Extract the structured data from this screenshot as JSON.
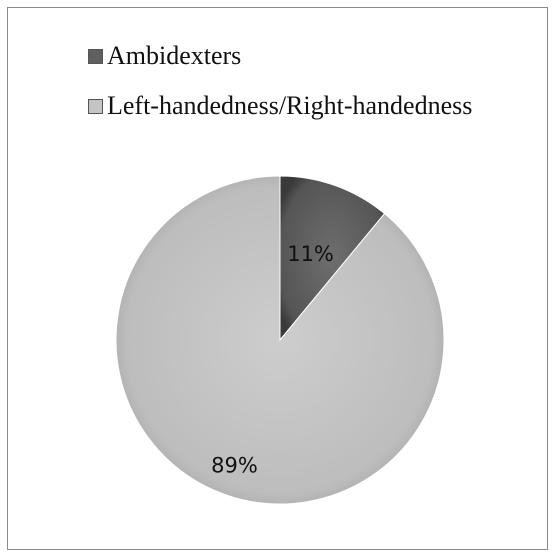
{
  "chart_data": {
    "type": "pie",
    "title": "",
    "categories": [
      "Ambidexters",
      "Left-handedness/Right-handedness"
    ],
    "values": [
      11,
      89
    ],
    "labels": [
      "11%",
      "89%"
    ],
    "colors": [
      "#5f5f5f",
      "#c4c4c4"
    ],
    "legend_position": "top-left"
  }
}
